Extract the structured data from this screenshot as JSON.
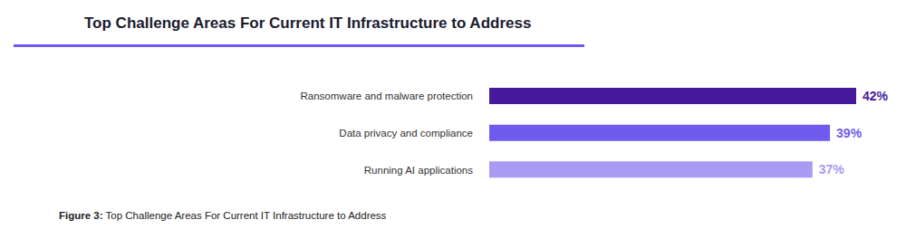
{
  "chart_data": {
    "type": "bar",
    "title": "Top Challenge Areas For Current IT Infrastructure to Address",
    "orientation": "horizontal",
    "categories": [
      "Ransomware and malware protection",
      "Data privacy and compliance",
      "Running AI applications"
    ],
    "values": [
      42,
      39,
      37
    ],
    "value_labels": [
      "42%",
      "39%",
      "37%"
    ],
    "colors": [
      "#47199c",
      "#6f5bee",
      "#a99af4"
    ],
    "xlim": [
      0,
      42
    ],
    "data_labels": true,
    "tick_labels": "y",
    "grid": false,
    "caption_label": "Figure 3:",
    "caption": "Top Challenge Areas For Current IT Infrastructure to Address"
  }
}
